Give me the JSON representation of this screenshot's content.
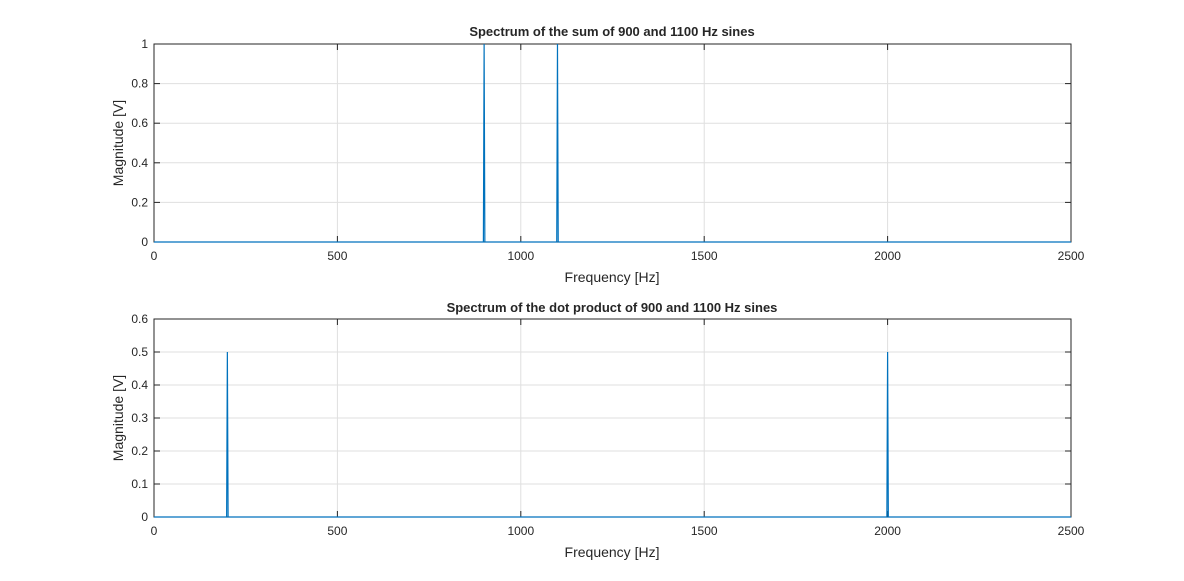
{
  "figure": {
    "background": "#ffffff",
    "axes_color": "#262626",
    "grid_color": "#dfdfdf",
    "line_color": "#0072bd"
  },
  "chart_data": [
    {
      "type": "line",
      "title": "Spectrum of the sum of 900 and 1100 Hz sines",
      "xlabel": "Frequency [Hz]",
      "ylabel": "Magnitude [V]",
      "xlim": [
        0,
        2500
      ],
      "ylim": [
        0,
        1
      ],
      "xticks": [
        0,
        500,
        1000,
        1500,
        2000,
        2500
      ],
      "xtick_labels": [
        "0",
        "500",
        "1000",
        "1500",
        "2000",
        "2500"
      ],
      "yticks": [
        0,
        0.2,
        0.4,
        0.6,
        0.8,
        1
      ],
      "ytick_labels": [
        "0",
        "0.2",
        "0.4",
        "0.6",
        "0.8",
        "1"
      ],
      "grid": true,
      "box": true,
      "series": [
        {
          "x": [
            0,
            898,
            900,
            902,
            1098,
            1100,
            1102,
            2500
          ],
          "y": [
            0,
            0,
            1,
            0,
            0,
            1,
            0,
            0
          ]
        }
      ]
    },
    {
      "type": "line",
      "title": "Spectrum of the dot product of 900 and 1100 Hz sines",
      "xlabel": "Frequency [Hz]",
      "ylabel": "Magnitude [V]",
      "xlim": [
        0,
        2500
      ],
      "ylim": [
        0,
        0.6
      ],
      "xticks": [
        0,
        500,
        1000,
        1500,
        2000,
        2500
      ],
      "xtick_labels": [
        "0",
        "500",
        "1000",
        "1500",
        "2000",
        "2500"
      ],
      "yticks": [
        0,
        0.1,
        0.2,
        0.3,
        0.4,
        0.5,
        0.6
      ],
      "ytick_labels": [
        "0",
        "0.1",
        "0.2",
        "0.3",
        "0.4",
        "0.5",
        "0.6"
      ],
      "grid": true,
      "box": true,
      "series": [
        {
          "x": [
            0,
            198,
            200,
            202,
            1998,
            2000,
            2002,
            2500
          ],
          "y": [
            0,
            0,
            0.5,
            0,
            0,
            0.5,
            0,
            0
          ]
        }
      ]
    }
  ]
}
